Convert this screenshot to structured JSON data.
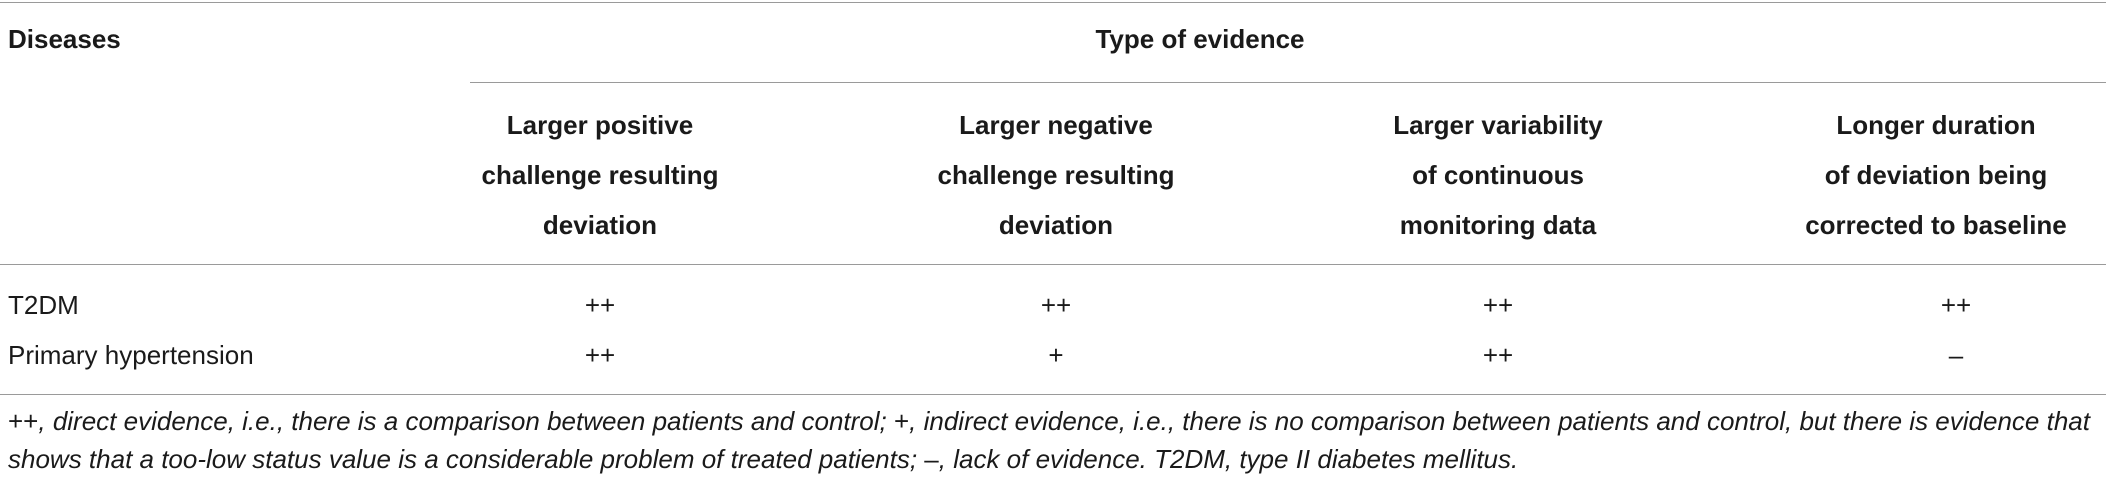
{
  "table": {
    "row_header": "Diseases",
    "group_header": "Type of evidence",
    "columns": [
      {
        "line1": "Larger positive",
        "line2": "challenge resulting",
        "line3": "deviation"
      },
      {
        "line1": "Larger negative",
        "line2": "challenge resulting",
        "line3": "deviation"
      },
      {
        "line1": "Larger variability",
        "line2": "of continuous",
        "line3": "monitoring data"
      },
      {
        "line1": "Longer duration",
        "line2": "of deviation being",
        "line3": "corrected to baseline"
      }
    ],
    "rows": [
      {
        "disease": "T2DM",
        "values": [
          "++",
          "++",
          "++",
          "++"
        ]
      },
      {
        "disease": "Primary hypertension",
        "values": [
          "++",
          "+",
          "++",
          "–"
        ]
      }
    ]
  },
  "footnote": {
    "sym1": "++",
    "text1": ", direct evidence, i.e., there is a comparison between patients and control; ",
    "sym2": "+",
    "text2": ", indirect evidence, i.e., there is no comparison between patients and control, but there is evidence that shows that a too-low status value is a considerable problem of treated patients; ",
    "sym3": "–",
    "text3": ", lack of evidence. T2DM, type II diabetes mellitus."
  }
}
